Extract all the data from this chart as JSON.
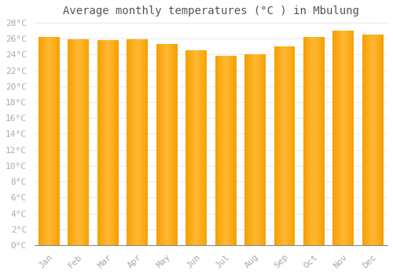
{
  "title": "Average monthly temperatures (°C ) in Mbulung",
  "months": [
    "Jan",
    "Feb",
    "Mar",
    "Apr",
    "May",
    "Jun",
    "Jul",
    "Aug",
    "Sep",
    "Oct",
    "Nov",
    "Dec"
  ],
  "values": [
    26.2,
    25.9,
    25.8,
    25.9,
    25.3,
    24.5,
    23.8,
    24.0,
    25.0,
    26.2,
    27.0,
    26.5
  ],
  "bar_color_center": "#FFB833",
  "bar_color_edge": "#F5A000",
  "bar_color_bottom": "#FFCC44",
  "background_color": "#FFFFFF",
  "grid_color": "#E0E0E0",
  "ylim": [
    0,
    28
  ],
  "ytick_step": 2,
  "title_fontsize": 10,
  "tick_fontsize": 8,
  "tick_color": "#AAAAAA",
  "title_color": "#555555",
  "bar_width": 0.72
}
